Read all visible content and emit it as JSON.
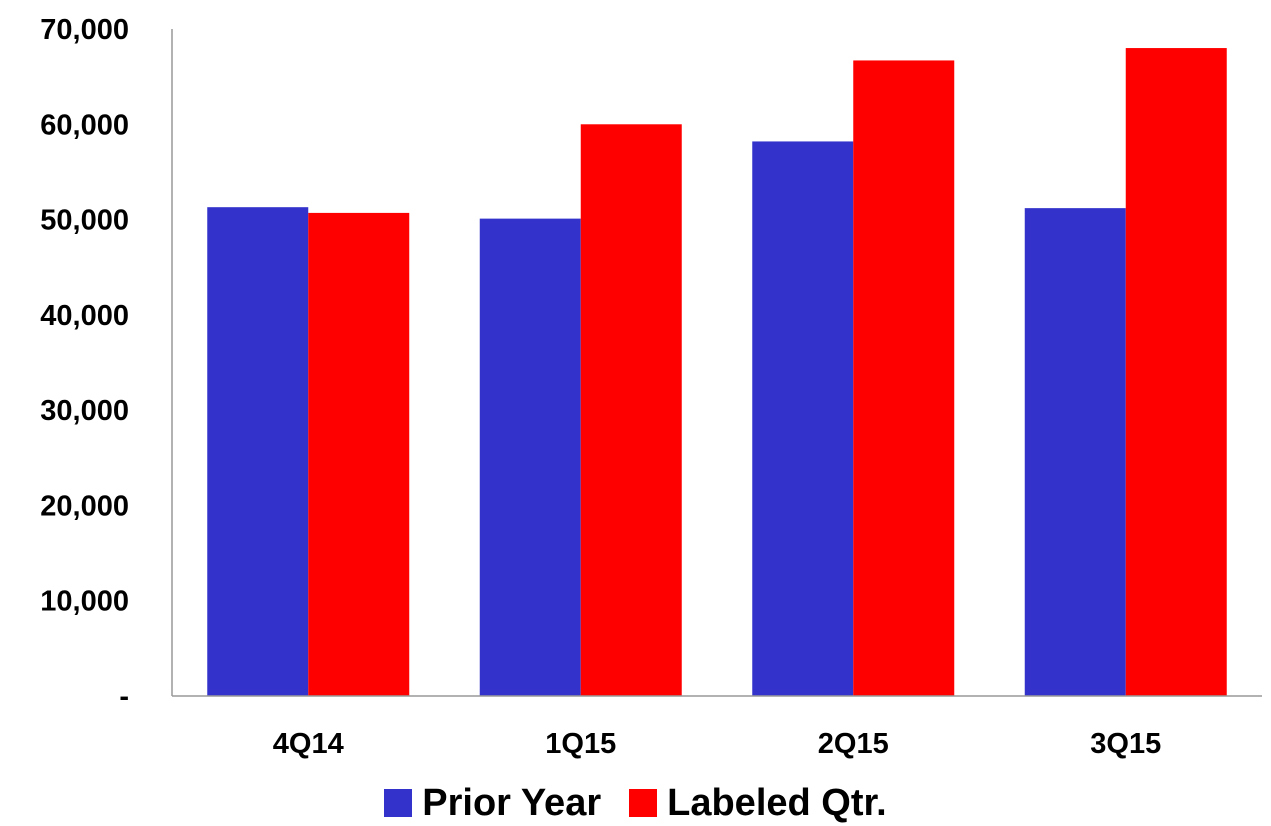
{
  "chart_data": {
    "type": "bar",
    "categories": [
      "4Q14",
      "1Q15",
      "2Q15",
      "3Q15"
    ],
    "series": [
      {
        "name": "Prior Year",
        "values": [
          51300,
          50100,
          58200,
          51200
        ],
        "color": "#3333CC"
      },
      {
        "name": "Labeled Qtr.",
        "values": [
          50700,
          60000,
          66700,
          68000
        ],
        "color": "#FF0000"
      }
    ],
    "y_ticks": [
      0,
      10000,
      20000,
      30000,
      40000,
      50000,
      60000,
      70000
    ],
    "y_tick_labels": [
      "-",
      "10,000",
      "20,000",
      "30,000",
      "40,000",
      "50,000",
      "60,000",
      "70,000"
    ],
    "ylim": [
      0,
      70000
    ],
    "legend_position": "bottom-center",
    "grid": false,
    "axis_color": "#999999"
  }
}
